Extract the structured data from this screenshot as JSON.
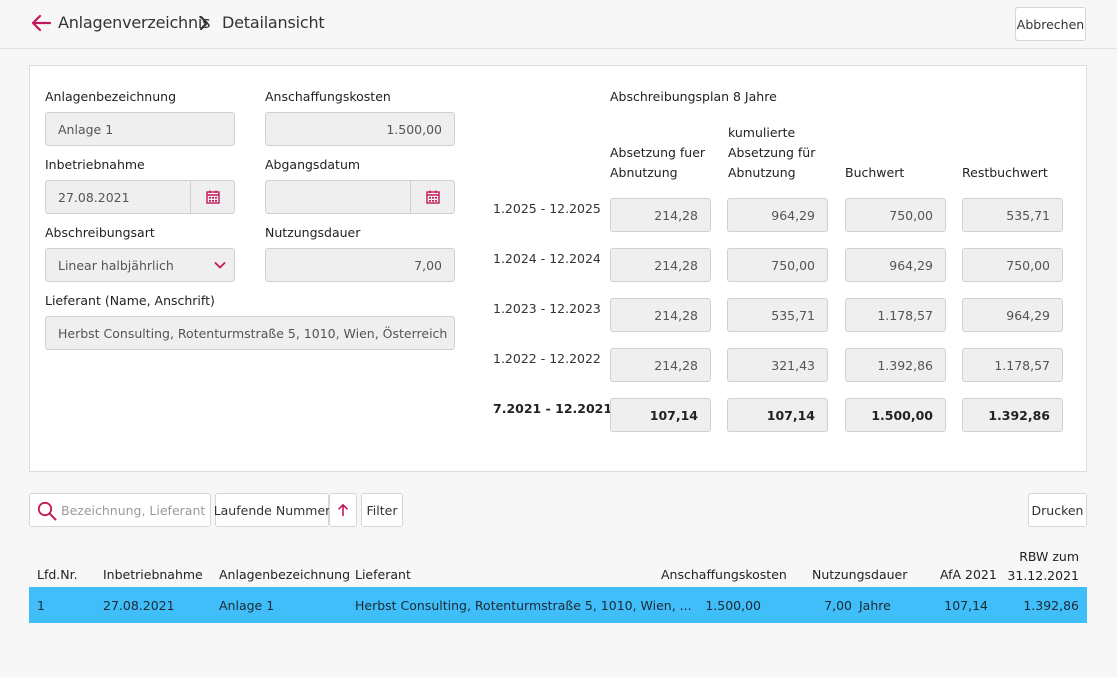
{
  "header": {
    "breadcrumb_parent": "Anlagenverzeichnis",
    "breadcrumb_current": "Detailansicht",
    "cancel_label": "Abbrechen"
  },
  "form": {
    "name_label": "Anlagenbezeichnung",
    "name_value": "Anlage 1",
    "cost_label": "Anschaffungskosten",
    "cost_value": "1.500,00",
    "start_label": "Inbetriebnahme",
    "start_value": "27.08.2021",
    "disposal_label": "Abgangsdatum",
    "disposal_value": "",
    "method_label": "Abschreibungsart",
    "method_value": "Linear halbjährlich",
    "duration_label": "Nutzungsdauer",
    "duration_value": "7,00",
    "supplier_label": "Lieferant (Name, Anschrift)",
    "supplier_value": "Herbst Consulting, Rotenturmstraße 5, 1010, Wien, Österreich"
  },
  "plan": {
    "title": "Abschreibungsplan 8 Jahre",
    "col_afa_1": "Absetzung fuer",
    "col_afa_2": "Abnutzung",
    "col_kum_1": "kumulierte",
    "col_kum_2": "Absetzung für",
    "col_kum_3": "Abnutzung",
    "col_buchwert": "Buchwert",
    "col_rest": "Restbuchwert",
    "rows": [
      {
        "period": "1.2025 - 12.2025",
        "afa": "214,28",
        "kum": "964,29",
        "buchwert": "750,00",
        "rest": "535,71"
      },
      {
        "period": "1.2024 - 12.2024",
        "afa": "214,28",
        "kum": "750,00",
        "buchwert": "964,29",
        "rest": "750,00"
      },
      {
        "period": "1.2023 - 12.2023",
        "afa": "214,28",
        "kum": "535,71",
        "buchwert": "1.178,57",
        "rest": "964,29"
      },
      {
        "period": "1.2022 - 12.2022",
        "afa": "214,28",
        "kum": "321,43",
        "buchwert": "1.392,86",
        "rest": "1.178,57"
      },
      {
        "period": "7.2021 - 12.2021",
        "afa": "107,14",
        "kum": "107,14",
        "buchwert": "1.500,00",
        "rest": "1.392,86"
      }
    ]
  },
  "toolbar": {
    "search_placeholder": "Bezeichnung, Lieferant",
    "sort_label": "Laufende Nummer",
    "filter_label": "Filter",
    "print_label": "Drucken"
  },
  "table": {
    "headers": {
      "nr": "Lfd.Nr.",
      "start": "Inbetriebnahme",
      "name": "Anlagenbezeichnung",
      "supplier": "Lieferant",
      "cost": "Anschaffungskosten",
      "duration": "Nutzungsdauer",
      "afa": "AfA 2021",
      "rbw_1": "RBW zum",
      "rbw_2": "31.12.2021"
    },
    "rows": [
      {
        "nr": "1",
        "start": "27.08.2021",
        "name": "Anlage 1",
        "supplier": "Herbst Consulting, Rotenturmstraße 5, 1010, Wien, ...",
        "cost": "1.500,00",
        "duration": "7,00",
        "duration_unit": "Jahre",
        "afa": "107,14",
        "rbw": "1.392,86"
      }
    ]
  },
  "colors": {
    "accent": "#c2185b",
    "selected_row": "#3fbefa"
  }
}
